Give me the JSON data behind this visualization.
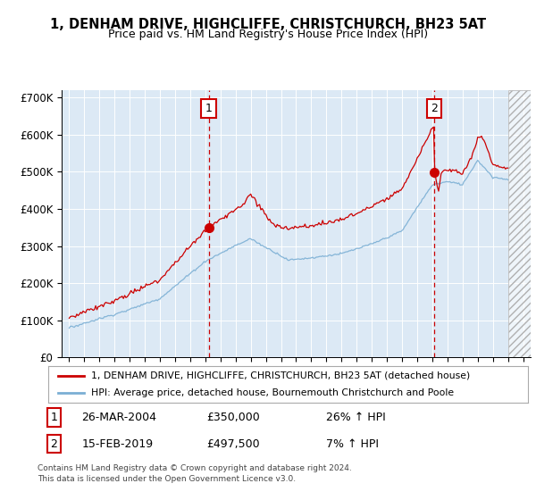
{
  "title": "1, DENHAM DRIVE, HIGHCLIFFE, CHRISTCHURCH, BH23 5AT",
  "subtitle": "Price paid vs. HM Land Registry's House Price Index (HPI)",
  "bg_color": "#dce9f5",
  "hpi_color": "#7bafd4",
  "price_color": "#cc0000",
  "sale1_year": 2004.23,
  "sale1_price": 350000,
  "sale2_year": 2019.12,
  "sale2_price": 497500,
  "ylim_min": 0,
  "ylim_max": 720000,
  "xlim_min": 1994.5,
  "xlim_max": 2025.5,
  "hatch_start": 2024.0,
  "footer": "Contains HM Land Registry data © Crown copyright and database right 2024.\nThis data is licensed under the Open Government Licence v3.0.",
  "legend_line1": "1, DENHAM DRIVE, HIGHCLIFFE, CHRISTCHURCH, BH23 5AT (detached house)",
  "legend_line2": "HPI: Average price, detached house, Bournemouth Christchurch and Poole",
  "ann1_date": "26-MAR-2004",
  "ann1_price": "£350,000",
  "ann1_hpi": "26% ↑ HPI",
  "ann2_date": "15-FEB-2019",
  "ann2_price": "£497,500",
  "ann2_hpi": "7% ↑ HPI"
}
